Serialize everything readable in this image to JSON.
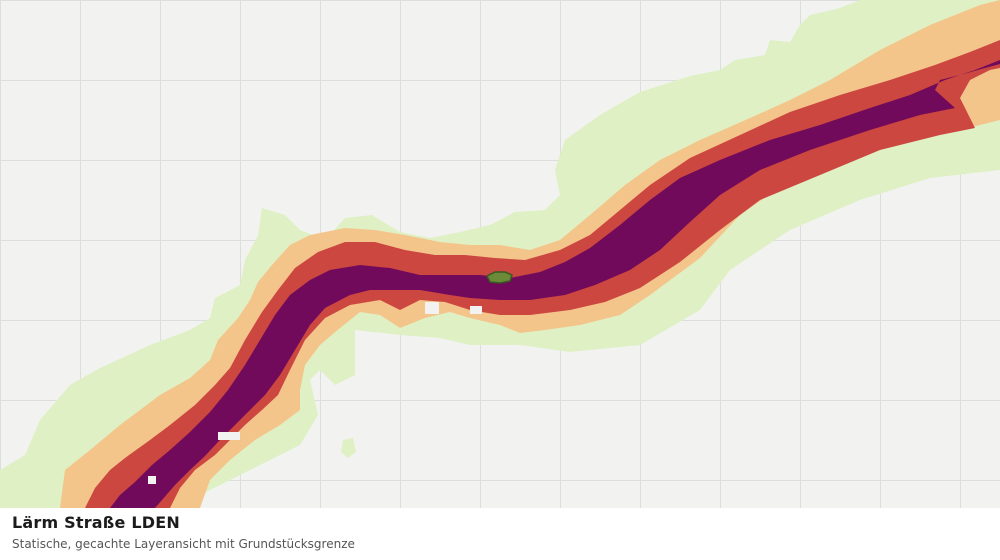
{
  "map": {
    "layer": "Lärm Straße LDEN",
    "noise_band_colors": {
      "outer": "#dff0c4",
      "low": "#f4c58b",
      "mid": "#cc4740",
      "high": "#710a5b"
    },
    "parcel_boundary_color": "#3a5a20",
    "basemap_background": "#f2f3f1",
    "grid_color": "#dcdedb"
  },
  "caption": {
    "title": "Lärm Straße LDEN",
    "subtitle": "Statische, gecachte Layeransicht mit Grundstücksgrenze"
  }
}
